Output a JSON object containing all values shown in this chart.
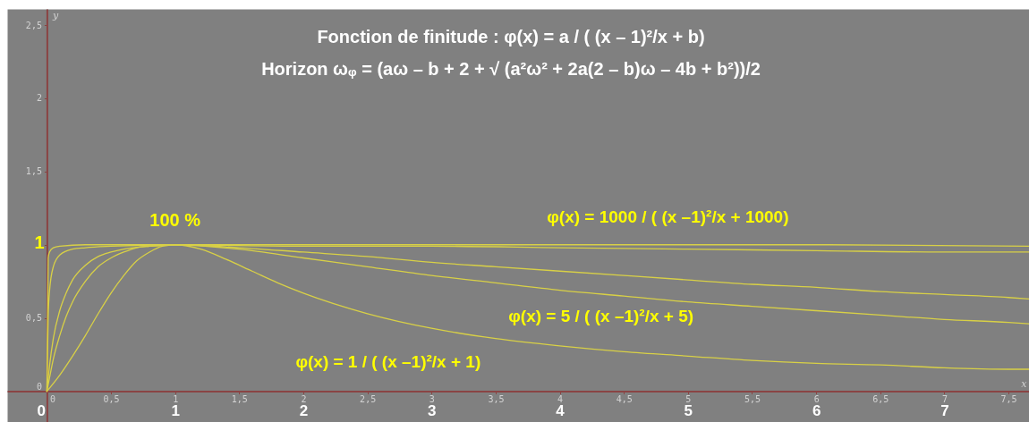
{
  "chart_data": {
    "type": "line",
    "title": "Fonction de finitude : φ(x) =  a / ( (x – 1)²/x  + b)",
    "subtitle": "Horizon ωᵩ  =  (aω – b + 2  + √ (a²ω² +  2a(2 – b)ω – 4b + b²))/2",
    "xlabel": "x",
    "ylabel": "y",
    "annotations": [
      {
        "text": "100 %",
        "x": 1,
        "y": 1
      },
      "1"
    ],
    "xlim": [
      -0.31,
      7.66
    ],
    "ylim": [
      -0.21,
      2.61
    ],
    "xticks": [
      0,
      {
        "value": 0.5,
        "label": "0,5"
      },
      1,
      {
        "value": 1.5,
        "label": "1,5"
      },
      2,
      {
        "value": 2.5,
        "label": "2,5"
      },
      3,
      {
        "value": 3.5,
        "label": "3,5"
      },
      4,
      {
        "value": 4.5,
        "label": "4,5"
      },
      5,
      {
        "value": 5.5,
        "label": "5,5"
      },
      6,
      {
        "value": 6.5,
        "label": "6,5"
      },
      7,
      {
        "value": 7.5,
        "label": "7,5"
      }
    ],
    "yticks": [
      0,
      {
        "value": 0.5,
        "label": "0,5"
      },
      {
        "value": 1,
        "label": null
      },
      {
        "value": 1.5,
        "label": "1,5"
      },
      2,
      {
        "value": 2.5,
        "label": "2,5"
      }
    ],
    "x2lim": [
      -0.31,
      7.66
    ],
    "x2ticks": [
      0,
      1,
      2,
      3,
      4,
      5,
      6,
      7
    ],
    "line_style": "solid",
    "series": [
      {
        "name": "φ(x) =  1000 / ( (x –1)²/x  + 1000)",
        "color": "#d8d046",
        "x": [
          0,
          0.01,
          0.02,
          0.05,
          0.1,
          0.3,
          1,
          2,
          4,
          6,
          7.66
        ],
        "values": [
          0,
          0.91,
          0.95,
          0.98,
          0.99,
          1,
          1,
          1,
          1,
          1,
          0.99
        ]
      },
      {
        "color": "#d8d046",
        "x": [
          0,
          0.01,
          0.02,
          0.05,
          0.1,
          0.2,
          0.3,
          0.5,
          1,
          2,
          3,
          4,
          5,
          6,
          7,
          7.66
        ],
        "values": [
          0,
          0.51,
          0.68,
          0.85,
          0.93,
          0.97,
          0.98,
          0.99,
          1,
          0.99,
          0.99,
          0.98,
          0.97,
          0.96,
          0.95,
          0.95
        ]
      },
      {
        "color": "#d8d046",
        "x": [
          0,
          0.01,
          0.02,
          0.05,
          0.1,
          0.15,
          0.2,
          0.3,
          0.4,
          0.5,
          0.6,
          0.8,
          1,
          1.5,
          2,
          2.5,
          3,
          3.5,
          4,
          4.5,
          5,
          5.5,
          6,
          6.5,
          7,
          7.5,
          7.66
        ],
        "values": [
          0,
          0.09,
          0.17,
          0.36,
          0.55,
          0.67,
          0.76,
          0.86,
          0.92,
          0.95,
          0.97,
          0.99,
          1,
          0.98,
          0.95,
          0.92,
          0.88,
          0.85,
          0.82,
          0.79,
          0.76,
          0.73,
          0.71,
          0.68,
          0.66,
          0.64,
          0.63
        ]
      },
      {
        "name": "φ(x) =  5 / ( (x –1)²/x  + 5)",
        "color": "#d8d046",
        "x": [
          0,
          0.02,
          0.05,
          0.1,
          0.15,
          0.2,
          0.3,
          0.4,
          0.5,
          0.6,
          0.7,
          0.8,
          1,
          1.5,
          2,
          2.5,
          3,
          3.5,
          4,
          4.5,
          5,
          5.5,
          6,
          6.5,
          7,
          7.5,
          7.66
        ],
        "values": [
          0,
          0.09,
          0.22,
          0.38,
          0.51,
          0.61,
          0.75,
          0.85,
          0.91,
          0.95,
          0.98,
          0.99,
          1,
          0.97,
          0.91,
          0.85,
          0.79,
          0.74,
          0.69,
          0.65,
          0.61,
          0.58,
          0.55,
          0.52,
          0.49,
          0.47,
          0.46
        ]
      },
      {
        "name": "φ(x) =  1 / ( (x –1)²/x  + 1)",
        "color": "#d8d046",
        "x": [
          0,
          0.1,
          0.2,
          0.3,
          0.4,
          0.5,
          0.6,
          0.7,
          0.8,
          0.9,
          1,
          1.2,
          1.4,
          1.6,
          1.8,
          2,
          2.5,
          3,
          3.5,
          4,
          4.5,
          5,
          5.5,
          6,
          6.5,
          7,
          7.5,
          7.66
        ],
        "values": [
          0,
          0.11,
          0.24,
          0.38,
          0.53,
          0.67,
          0.79,
          0.89,
          0.95,
          0.99,
          1,
          0.97,
          0.9,
          0.82,
          0.74,
          0.67,
          0.53,
          0.43,
          0.36,
          0.31,
          0.27,
          0.24,
          0.21,
          0.19,
          0.18,
          0.16,
          0.15,
          0.15
        ]
      }
    ]
  }
}
